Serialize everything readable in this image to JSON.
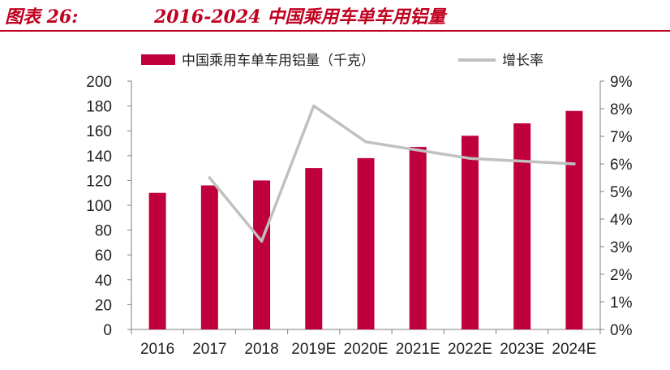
{
  "figure": {
    "label": "图表 26:",
    "title": "2016-2024 中国乘用车单车用铝量"
  },
  "colors": {
    "bar": "#c0003c",
    "line": "#c0c0c0",
    "axis": "#7f7f7f",
    "accent": "#c00020"
  },
  "chart_data": {
    "type": "bar+line",
    "categories": [
      "2016",
      "2017",
      "2018",
      "2019E",
      "2020E",
      "2021E",
      "2022E",
      "2023E",
      "2024E"
    ],
    "series": [
      {
        "name": "中国乘用车单车用铝量（千克）",
        "type": "bar",
        "axis": "left",
        "values": [
          110,
          116,
          120,
          130,
          138,
          147,
          156,
          166,
          176
        ]
      },
      {
        "name": "增长率",
        "type": "line",
        "axis": "right",
        "values": [
          null,
          5.5,
          3.2,
          8.1,
          6.8,
          6.5,
          6.2,
          6.1,
          6.0
        ]
      }
    ],
    "y_left": {
      "min": 0,
      "max": 200,
      "ticks": [
        "0",
        "20",
        "40",
        "60",
        "80",
        "100",
        "120",
        "140",
        "160",
        "180",
        "200"
      ]
    },
    "y_right": {
      "min": 0,
      "max": 9,
      "ticks": [
        "0%",
        "1%",
        "2%",
        "3%",
        "4%",
        "5%",
        "6%",
        "7%",
        "8%",
        "9%"
      ]
    },
    "legend": [
      "中国乘用车单车用铝量（千克）",
      "增长率"
    ]
  }
}
